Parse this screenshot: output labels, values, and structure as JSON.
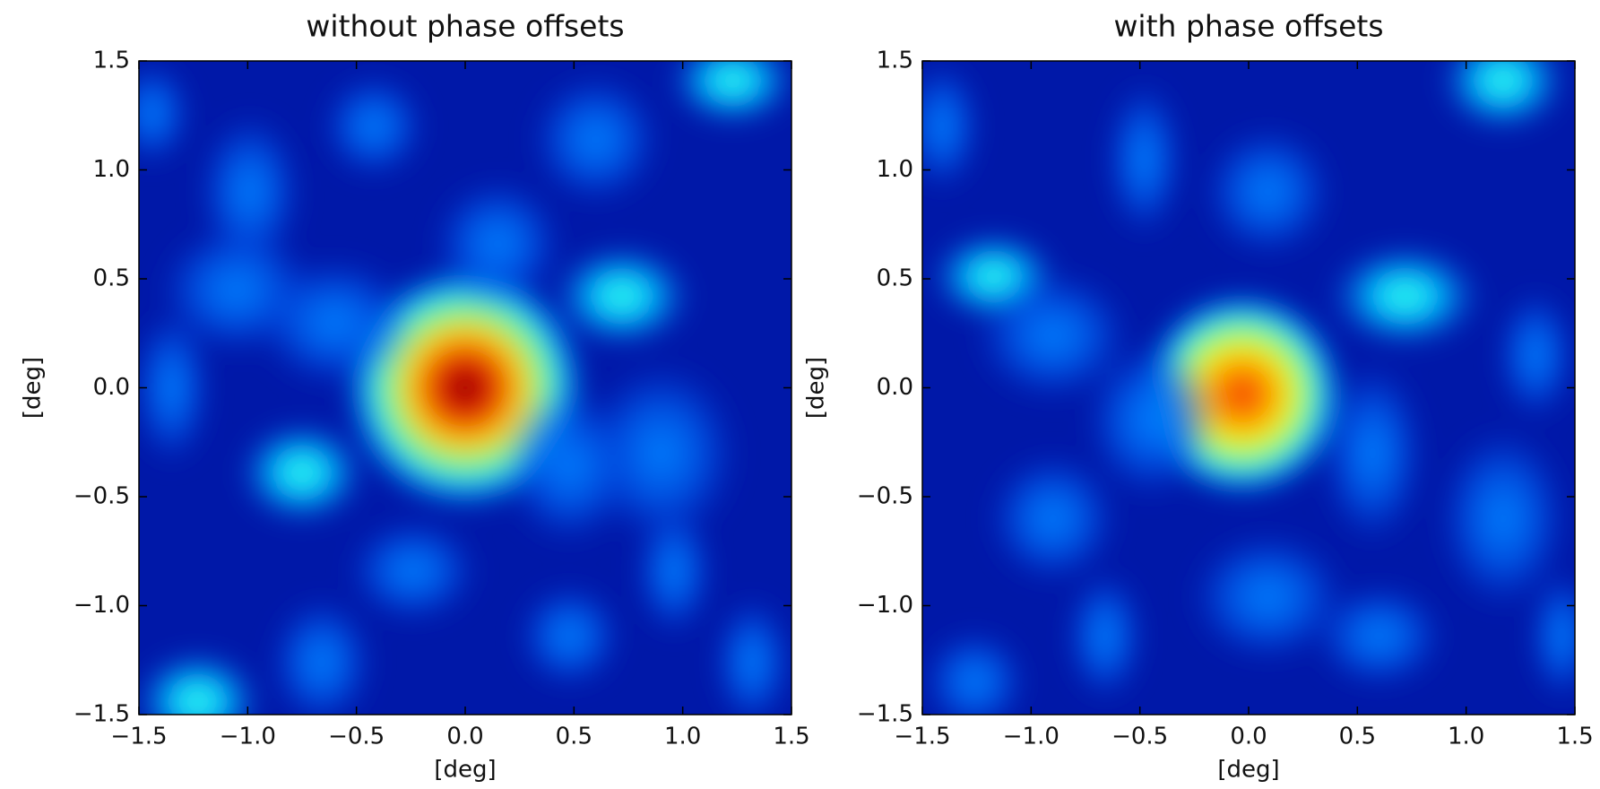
{
  "chart_data": [
    {
      "type": "heatmap",
      "title": "without phase offsets",
      "xlabel": "[deg]",
      "ylabel": "[deg]",
      "xlim": [
        -1.5,
        1.5
      ],
      "ylim": [
        -1.5,
        1.5
      ],
      "xticks": [
        {
          "value": -1.5,
          "label": "−1.5"
        },
        {
          "value": -1.0,
          "label": "−1.0"
        },
        {
          "value": -0.5,
          "label": "−0.5"
        },
        {
          "value": 0,
          "label": "0.0"
        },
        0.5,
        {
          "value": 1.0,
          "label": "1.0"
        },
        1.5
      ],
      "yticks": [
        {
          "value": -1.5,
          "label": "−1.5"
        },
        {
          "value": -1.0,
          "label": "−1.0"
        },
        {
          "value": -0.5,
          "label": "−0.5"
        },
        {
          "value": 0,
          "label": "0.0"
        },
        0.5,
        {
          "value": 1.0,
          "label": "1.0"
        },
        1.5
      ]
    },
    {
      "type": "heatmap",
      "title": "with phase offsets",
      "xlabel": "[deg]",
      "ylabel": "[deg]",
      "xlim": [
        -1.5,
        1.5
      ],
      "ylim": [
        -1.5,
        1.5
      ],
      "xticks": [
        {
          "value": -1.5,
          "label": "−1.5"
        },
        {
          "value": -1.0,
          "label": "−1.0"
        },
        {
          "value": -0.5,
          "label": "−0.5"
        },
        {
          "value": 0,
          "label": "0.0"
        },
        0.5,
        {
          "value": 1.0,
          "label": "1.0"
        },
        1.5
      ],
      "yticks": [
        {
          "value": -1.5,
          "label": "−1.5"
        },
        {
          "value": -1.0,
          "label": "−1.0"
        },
        {
          "value": -0.5,
          "label": "−0.5"
        },
        {
          "value": 0,
          "label": "0.0"
        },
        0.5,
        {
          "value": 1.0,
          "label": "1.0"
        },
        1.5
      ]
    }
  ]
}
